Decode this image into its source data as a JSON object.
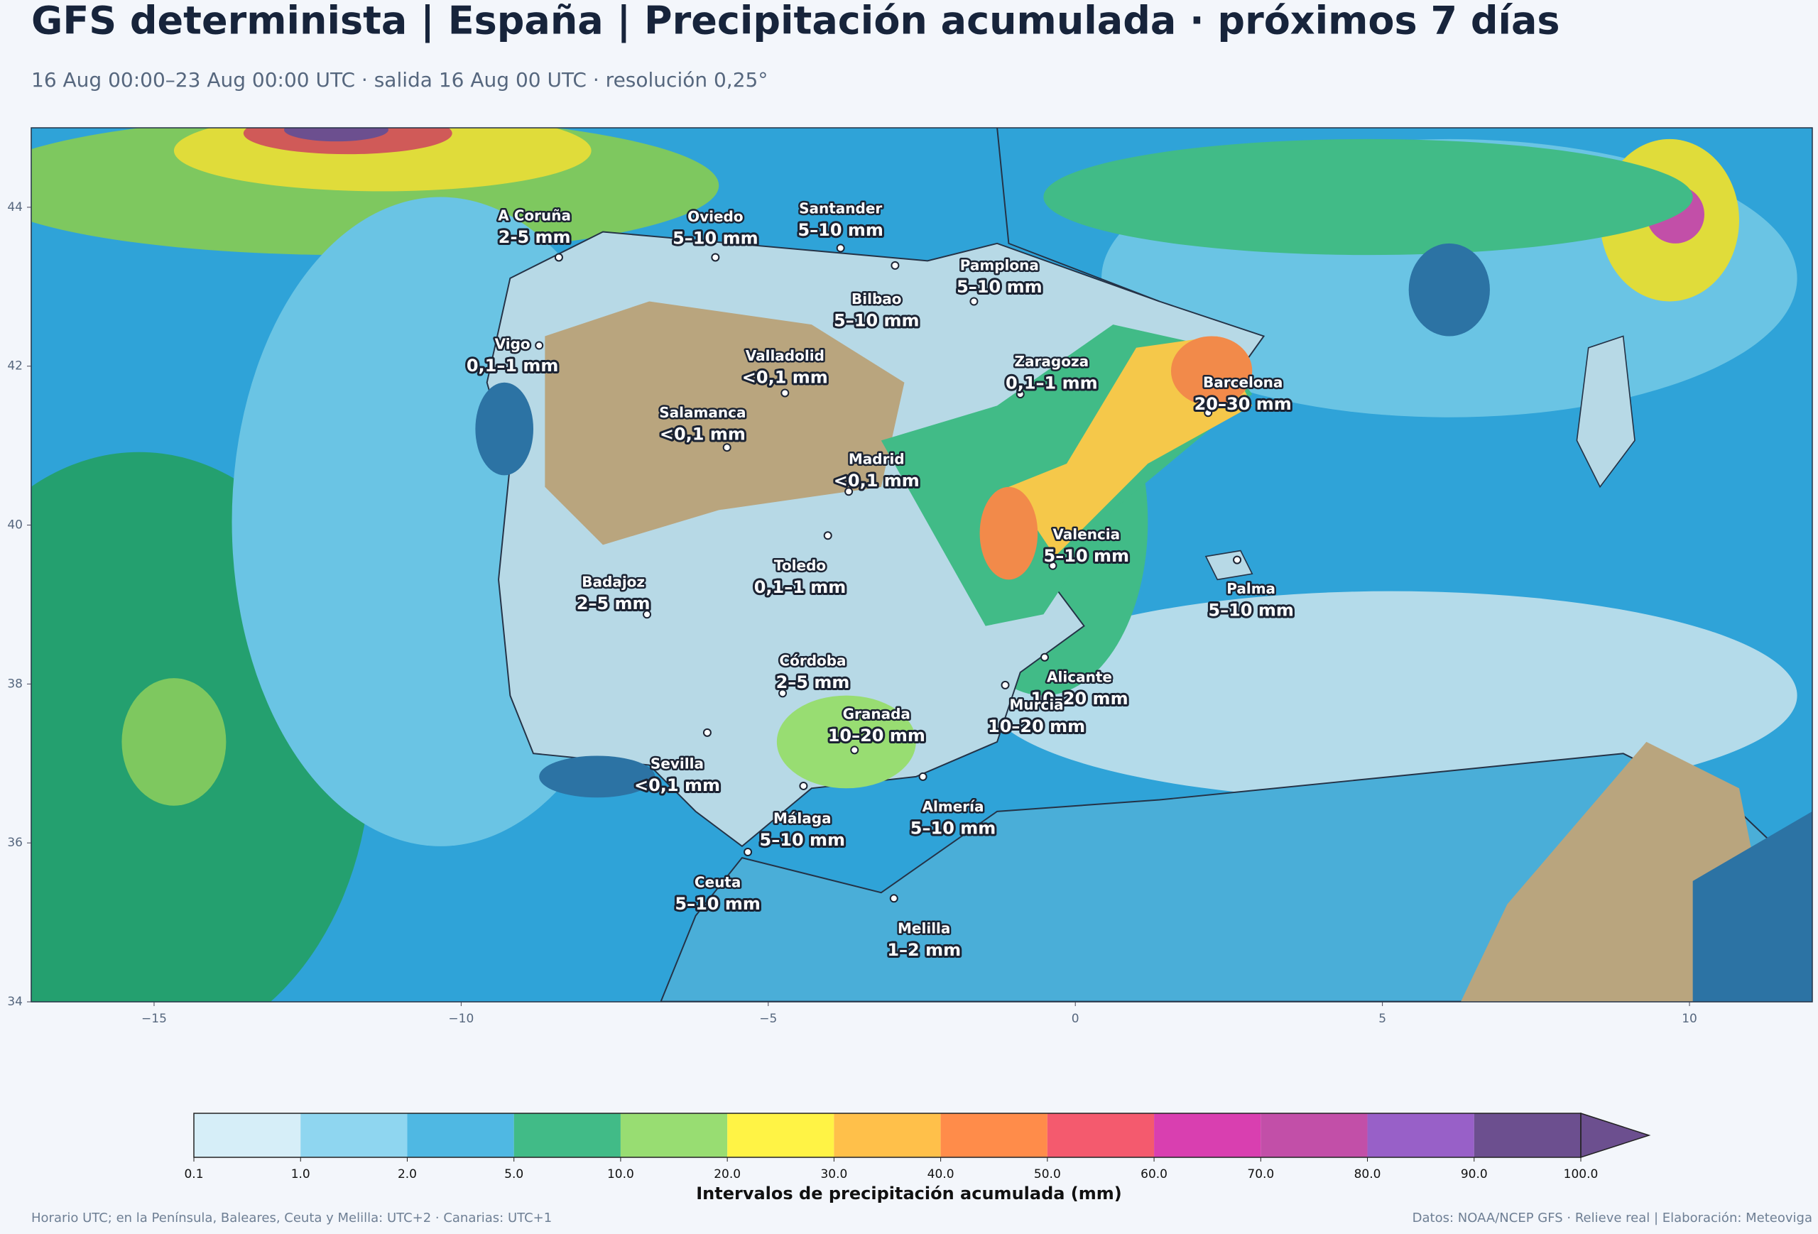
{
  "header": {
    "title": "GFS determinista | España | Precipitación acumulada · próximos 7 días",
    "subtitle": "16 Aug 00:00–23 Aug 00:00 UTC · salida 16 Aug 00 UTC · resolución 0,25°"
  },
  "map": {
    "xlim": [
      -17,
      12
    ],
    "ylim": [
      34,
      45
    ],
    "xticks": [
      {
        "value": -15,
        "label": "−15"
      },
      {
        "value": -10,
        "label": "−10"
      },
      {
        "value": -5,
        "label": "−5"
      },
      0,
      5,
      10
    ],
    "yticks": [
      34,
      36,
      38,
      40,
      42,
      44
    ],
    "cities": [
      {
        "name": "A Coruña",
        "value": "2-5 mm"
      },
      {
        "name": "Oviedo",
        "value": "5–10 mm"
      },
      {
        "name": "Santander",
        "value": "5–10 mm"
      },
      {
        "name": "Pamplona",
        "value": "5–10 mm"
      },
      {
        "name": "Bilbao",
        "value": "5–10 mm"
      },
      {
        "name": "Vigo",
        "value": "0,1–1 mm"
      },
      {
        "name": "Valladolid",
        "value": "<0,1 mm"
      },
      {
        "name": "Zaragoza",
        "value": "0,1–1 mm"
      },
      {
        "name": "Barcelona",
        "value": "20–30 mm"
      },
      {
        "name": "Salamanca",
        "value": "<0,1 mm"
      },
      {
        "name": "Madrid",
        "value": "<0,1 mm"
      },
      {
        "name": "Valencia",
        "value": "5–10 mm"
      },
      {
        "name": "Toledo",
        "value": "0,1–1 mm"
      },
      {
        "name": "Badajoz",
        "value": "2–5 mm"
      },
      {
        "name": "Palma",
        "value": "5–10 mm"
      },
      {
        "name": "Córdoba",
        "value": "2–5 mm"
      },
      {
        "name": "Alicante",
        "value": "10–20 mm"
      },
      {
        "name": "Granada",
        "value": "10–20 mm"
      },
      {
        "name": "Murcia",
        "value": "10–20 mm"
      },
      {
        "name": "Sevilla",
        "value": "<0,1 mm"
      },
      {
        "name": "Almería",
        "value": "5–10 mm"
      },
      {
        "name": "Málaga",
        "value": "5–10 mm"
      },
      {
        "name": "Ceuta",
        "value": "5–10 mm"
      },
      {
        "name": "Melilla",
        "value": "1–2 mm"
      }
    ]
  },
  "colorbar": {
    "title": "Intervalos de precipitación acumulada (mm)",
    "ticks": [
      0.1,
      {
        "value": 1,
        "label": "1.0"
      },
      {
        "value": 2,
        "label": "2.0"
      },
      {
        "value": 5,
        "label": "5.0"
      },
      {
        "value": 10,
        "label": "10.0"
      },
      {
        "value": 20,
        "label": "20.0"
      },
      {
        "value": 30,
        "label": "30.0"
      },
      {
        "value": 40,
        "label": "40.0"
      },
      {
        "value": 50,
        "label": "50.0"
      },
      {
        "value": 60,
        "label": "60.0"
      },
      {
        "value": 70,
        "label": "70.0"
      },
      {
        "value": 80,
        "label": "80.0"
      },
      {
        "value": 90,
        "label": "90.0"
      },
      {
        "value": 100,
        "label": "100.0"
      }
    ],
    "colors": [
      "#d6eef8",
      "#8fd6f0",
      "#4fb8e3",
      "#41bb87",
      "#98dd72",
      "#fff345",
      "#ffc04a",
      "#ff8c4a",
      "#f45a6e",
      "#d93fb0",
      "#c24fa8",
      "#9860c8",
      "#6c4f8f"
    ]
  },
  "footer": {
    "left": "Horario UTC; en la Península, Baleares, Ceuta y Melilla: UTC+2 · Canarias: UTC+1",
    "right": "Datos: NOAA/NCEP GFS · Relieve real | Elaboración: Meteoviga"
  }
}
